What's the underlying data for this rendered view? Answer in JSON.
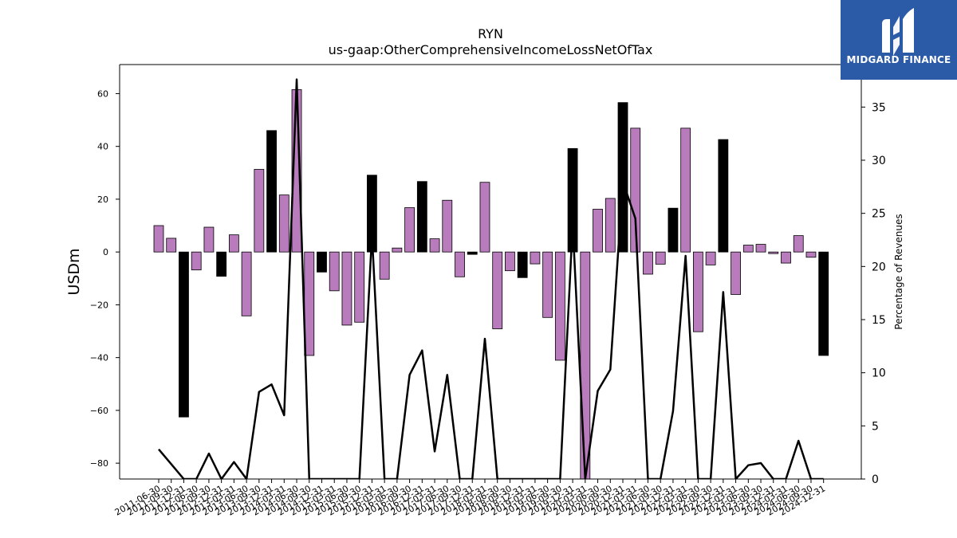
{
  "chart_data": {
    "type": "bar",
    "title": "RYN",
    "subtitle": "us-gaap:OtherComprehensiveIncomeLossNetOfTax",
    "ylabel": "USDm",
    "y2label": "Percentage of Revenues",
    "ylim": [
      -86,
      71
    ],
    "y2lim": [
      0,
      39
    ],
    "yticks": [
      -80,
      -60,
      -40,
      -20,
      0,
      20,
      40,
      60
    ],
    "y2ticks": [
      0,
      5,
      10,
      15,
      20,
      25,
      30,
      35
    ],
    "categories": [
      "2011-06-30",
      "2011-09-30",
      "2011-12-31",
      "2012-06-30",
      "2012-09-30",
      "2012-12-31",
      "2013-03-31",
      "2013-06-30",
      "2013-09-30",
      "2013-12-31",
      "2014-03-31",
      "2014-06-30",
      "2014-09-30",
      "2014-12-31",
      "2015-03-31",
      "2015-06-30",
      "2015-09-30",
      "2015-12-31",
      "2016-03-31",
      "2016-06-30",
      "2016-09-30",
      "2016-12-31",
      "2017-03-31",
      "2017-06-30",
      "2017-09-30",
      "2017-12-31",
      "2018-03-31",
      "2018-06-30",
      "2018-09-30",
      "2018-12-31",
      "2019-03-31",
      "2019-06-30",
      "2019-09-30",
      "2019-12-31",
      "2020-03-31",
      "2020-06-30",
      "2020-09-30",
      "2020-12-31",
      "2021-03-31",
      "2021-06-30",
      "2021-09-30",
      "2021-12-31",
      "2022-03-31",
      "2022-06-30",
      "2022-09-30",
      "2022-12-31",
      "2023-03-31",
      "2023-06-30",
      "2023-09-30",
      "2023-12-31",
      "2024-03-31",
      "2024-06-30",
      "2024-09-30",
      "2024-12-31"
    ],
    "series": [
      {
        "values": [
          10.0,
          5.2,
          -62.5,
          -6.8,
          9.4,
          -9.2,
          6.5,
          -24.2,
          31.3,
          46.0,
          21.6,
          61.5,
          -39.2,
          -7.6,
          -14.7,
          -27.7,
          -26.6,
          29.1,
          -10.3,
          1.5,
          16.8,
          26.7,
          5.0,
          19.6,
          -9.4,
          -0.9,
          26.4,
          -29.1,
          -7.1,
          -9.7,
          -4.5,
          -24.8,
          -41.0,
          39.2,
          -86.0,
          16.2,
          20.3,
          56.6,
          46.9,
          -8.4,
          -4.6,
          16.6,
          46.9,
          -30.2,
          -4.9,
          42.6,
          -16.1,
          2.6,
          2.9,
          -0.6,
          -4.2,
          6.2,
          -2.0,
          -39.2
        ]
      },
      {
        "values": [
          2.8,
          1.4,
          0,
          0,
          2.4,
          0,
          1.6,
          0,
          8.2,
          8.9,
          6.0,
          37.6,
          0,
          0,
          0,
          0,
          0,
          23.0,
          0,
          0,
          9.8,
          12.1,
          2.6,
          9.8,
          0,
          0,
          13.2,
          0,
          0,
          0,
          0,
          0,
          0,
          24.0,
          0,
          8.3,
          10.3,
          28.0,
          24.5,
          0,
          0,
          6.4,
          21.0,
          0,
          0,
          17.6,
          0,
          1.3,
          1.5,
          0,
          0,
          3.6,
          0,
          0
        ],
        "axis": "right"
      }
    ],
    "highlight_indices": [
      2,
      5,
      9,
      13,
      17,
      21,
      25,
      29,
      33,
      37,
      41,
      45,
      53
    ],
    "colors": {
      "bar": "#b87bbc",
      "bar_highlight": "#000000",
      "line": "#000000",
      "edge": "#000000"
    },
    "grid": false
  },
  "logo": {
    "text": "MIDGARD FINANCE"
  }
}
